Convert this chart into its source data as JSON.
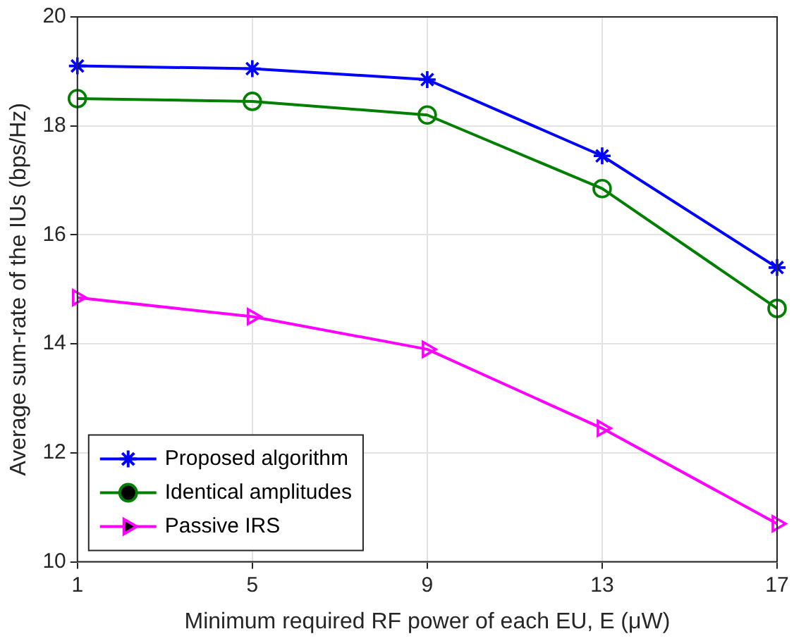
{
  "chart_data": {
    "type": "line",
    "xlabel": "Minimum required RF power of each EU, E (μW)",
    "ylabel": "Average sum-rate of the IUs (bps/Hz)",
    "x": [
      1,
      5,
      9,
      13,
      17
    ],
    "xlim": [
      1,
      17
    ],
    "xticks": [
      1,
      5,
      9,
      13,
      17
    ],
    "ylim": [
      10,
      20
    ],
    "yticks": [
      10,
      12,
      14,
      16,
      18,
      20
    ],
    "grid": true,
    "legend": "bottom left",
    "line_style": "solid",
    "series": [
      {
        "name": "Proposed algorithm",
        "color": "#0000ff",
        "marker": "cross",
        "values": [
          19.1,
          19.05,
          18.85,
          17.45,
          15.4
        ]
      },
      {
        "name": "Identical amplitudes",
        "color": "#007f00",
        "marker": "circle",
        "values": [
          18.5,
          18.45,
          18.2,
          16.85,
          14.65
        ]
      },
      {
        "name": "Passive IRS",
        "color": "#ff00ff",
        "marker": "triangle",
        "values": [
          14.85,
          14.5,
          13.9,
          12.45,
          10.7
        ]
      }
    ]
  }
}
